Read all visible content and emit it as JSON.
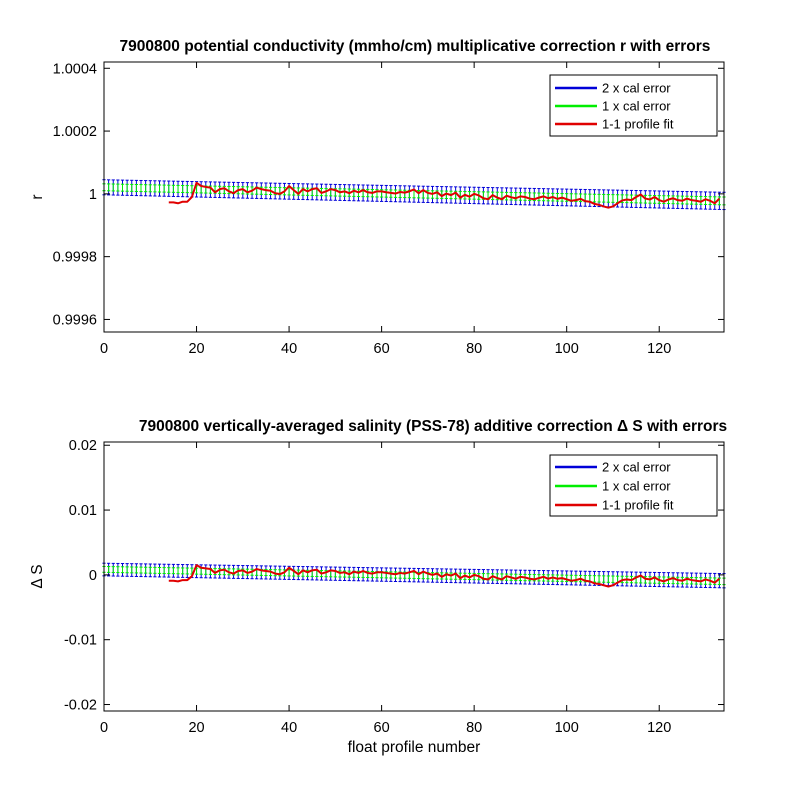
{
  "chart_data": [
    {
      "type": "line",
      "title": "7900800 potential conductivity (mmho/cm) multiplicative correction r with errors",
      "xlabel": "",
      "ylabel": "r",
      "xlim": [
        0,
        134
      ],
      "ylim": [
        0.99956,
        1.00042
      ],
      "xticks": [
        0,
        20,
        40,
        60,
        80,
        100,
        120
      ],
      "xtick_labels": [
        "0",
        "20",
        "40",
        "60",
        "80",
        "100",
        "120"
      ],
      "yticks": [
        0.9996,
        0.9998,
        1,
        1.0002,
        1.0004
      ],
      "ytick_labels": [
        "0.9996",
        "0.9998",
        "1",
        "1.0002",
        "1.0004"
      ],
      "legend_position": "top-right",
      "series": [
        {
          "name": "2 x cal error",
          "color": "#0000d8",
          "style": "errorbar",
          "x": [
            0,
            134
          ],
          "lower": [
            0.999997,
            0.99995
          ],
          "upper": [
            1.000045,
            1.000005
          ]
        },
        {
          "name": "1 x cal error",
          "color": "#00ee00",
          "style": "errorbar",
          "x": [
            0,
            134
          ],
          "lower": [
            1.00001,
            0.999965
          ],
          "upper": [
            1.000032,
            0.99999
          ]
        },
        {
          "name": "1-1 profile fit",
          "color": "#e00000",
          "style": "line",
          "x": [
            14,
            15,
            16,
            17,
            18,
            19,
            20,
            21,
            22,
            23,
            24,
            25,
            26,
            27,
            28,
            29,
            30,
            31,
            32,
            33,
            34,
            35,
            36,
            37,
            38,
            39,
            40,
            41,
            42,
            43,
            44,
            45,
            46,
            47,
            48,
            49,
            50,
            51,
            52,
            53,
            54,
            55,
            56,
            57,
            58,
            59,
            60,
            61,
            62,
            63,
            64,
            65,
            66,
            67,
            68,
            69,
            70,
            71,
            72,
            73,
            74,
            75,
            76,
            77,
            78,
            79,
            80,
            81,
            82,
            83,
            84,
            85,
            86,
            87,
            88,
            89,
            90,
            91,
            92,
            93,
            94,
            95,
            96,
            97,
            98,
            99,
            100,
            101,
            102,
            103,
            104,
            105,
            106,
            107,
            108,
            109,
            110,
            111,
            112,
            113,
            114,
            115,
            116,
            117,
            118,
            119,
            120,
            121,
            122,
            123,
            124,
            125,
            126,
            127,
            128,
            129,
            130,
            131,
            132,
            133
          ],
          "y": [
            0.999973,
            0.999973,
            0.99997,
            0.999975,
            0.999975,
            0.99999,
            1.000035,
            1.000025,
            1.000022,
            1.00002,
            1.000005,
            1.000015,
            1.000018,
            1.000008,
            1.000002,
            1.000012,
            1.000015,
            1.000005,
            1.00001,
            1.00002,
            1.000015,
            1.000012,
            1.00001,
            1.000002,
            1.0,
            1.000008,
            1.000025,
            1.000012,
            1.0,
            1.000015,
            1.000008,
            1.000015,
            1.000018,
            1.000003,
            1.000008,
            1.000015,
            1.000012,
            1.000005,
            1.000008,
            1.000002,
            1.00001,
            1.000005,
            1.000012,
            1.000005,
            1.000003,
            1.000008,
            1.000008,
            1.000005,
            1.000003,
            1.000001,
            1.000006,
            1.000004,
            1.000008,
            1.000014,
            1.000002,
            1.000012,
            1.000003,
            1.0,
            1.000005,
            0.999993,
            1.000001,
            0.999996,
            1.000004,
            0.999988,
            0.999997,
            0.999991,
            1.0,
            0.999995,
            0.999986,
            0.999983,
            0.999996,
            0.999988,
            0.999983,
            0.999994,
            0.999989,
            0.999986,
            0.999992,
            0.99999,
            0.999985,
            0.999983,
            0.999988,
            0.999992,
            0.999986,
            0.99999,
            0.999984,
            0.999988,
            0.999983,
            0.999978,
            0.99998,
            0.999984,
            0.999977,
            0.999975,
            0.999968,
            0.999965,
            0.99996,
            0.999956,
            0.99996,
            0.99997,
            0.999979,
            0.999982,
            0.99998,
            0.99999,
            0.999998,
            0.999985,
            0.999982,
            0.99999,
            0.99998,
            0.999975,
            0.999982,
            0.999986,
            0.99998,
            0.999978,
            0.999985,
            0.99998,
            0.999978,
            0.999975,
            0.999983,
            0.999978,
            0.99997,
            0.999985
          ]
        }
      ]
    },
    {
      "type": "line",
      "title": "7900800 vertically-averaged salinity (PSS-78) additive correction Δ S with errors",
      "xlabel": "float profile number",
      "ylabel": "Δ S",
      "xlim": [
        0,
        134
      ],
      "ylim": [
        -0.021,
        0.0205
      ],
      "xticks": [
        0,
        20,
        40,
        60,
        80,
        100,
        120
      ],
      "xtick_labels": [
        "0",
        "20",
        "40",
        "60",
        "80",
        "100",
        "120"
      ],
      "yticks": [
        -0.02,
        -0.01,
        0,
        0.01,
        0.02
      ],
      "ytick_labels": [
        "-0.02",
        "-0.01",
        "0",
        "0.01",
        "0.02"
      ],
      "legend_position": "top-right",
      "series": [
        {
          "name": "2 x cal error",
          "color": "#0000d8",
          "style": "errorbar",
          "x": [
            0,
            134
          ],
          "lower": [
            -0.00015,
            -0.002
          ],
          "upper": [
            0.0018,
            0.0002
          ]
        },
        {
          "name": "1 x cal error",
          "color": "#00ee00",
          "style": "errorbar",
          "x": [
            0,
            134
          ],
          "lower": [
            0.0004,
            -0.0015
          ],
          "upper": [
            0.0013,
            -0.0005
          ]
        },
        {
          "name": "1-1 profile fit",
          "color": "#e00000",
          "style": "line",
          "x": [
            14,
            15,
            16,
            17,
            18,
            19,
            20,
            21,
            22,
            23,
            24,
            25,
            26,
            27,
            28,
            29,
            30,
            31,
            32,
            33,
            34,
            35,
            36,
            37,
            38,
            39,
            40,
            41,
            42,
            43,
            44,
            45,
            46,
            47,
            48,
            49,
            50,
            51,
            52,
            53,
            54,
            55,
            56,
            57,
            58,
            59,
            60,
            61,
            62,
            63,
            64,
            65,
            66,
            67,
            68,
            69,
            70,
            71,
            72,
            73,
            74,
            75,
            76,
            77,
            78,
            79,
            80,
            81,
            82,
            83,
            84,
            85,
            86,
            87,
            88,
            89,
            90,
            91,
            92,
            93,
            94,
            95,
            96,
            97,
            98,
            99,
            100,
            101,
            102,
            103,
            104,
            105,
            106,
            107,
            108,
            109,
            110,
            111,
            112,
            113,
            114,
            115,
            116,
            117,
            118,
            119,
            120,
            121,
            122,
            123,
            124,
            125,
            126,
            127,
            128,
            129,
            130,
            131,
            132,
            133
          ],
          "y": [
            -0.0009,
            -0.0009,
            -0.001,
            -0.0008,
            -0.0008,
            -0.0002,
            0.0015,
            0.0011,
            0.001,
            0.0009,
            0.0003,
            0.0007,
            0.0008,
            0.0004,
            0.0002,
            0.0006,
            0.0007,
            0.0003,
            0.0005,
            0.0009,
            0.0007,
            0.0006,
            0.0005,
            0.0002,
            0.0001,
            0.0004,
            0.0011,
            0.0006,
            0.0001,
            0.0007,
            0.0004,
            0.0007,
            0.0008,
            0.0002,
            0.0004,
            0.0007,
            0.0006,
            0.0003,
            0.0004,
            0.0001,
            0.0005,
            0.0003,
            0.0006,
            0.0003,
            0.0002,
            0.0004,
            0.0004,
            0.0003,
            0.0002,
            0.0001,
            0.0003,
            0.0002,
            0.0004,
            0.0006,
            0.0001,
            0.0005,
            0.0002,
            0.0,
            0.0002,
            -0.0003,
            0.0001,
            -0.0001,
            0.0002,
            -0.0005,
            -0.0001,
            -0.0004,
            0.0,
            -0.0002,
            -0.0006,
            -0.0007,
            -0.0002,
            -0.0005,
            -0.0007,
            -0.0002,
            -0.0004,
            -0.0006,
            -0.0003,
            -0.0004,
            -0.0006,
            -0.0007,
            -0.0005,
            -0.0003,
            -0.0006,
            -0.0004,
            -0.0006,
            -0.0005,
            -0.0007,
            -0.0009,
            -0.0008,
            -0.0006,
            -0.0009,
            -0.001,
            -0.0013,
            -0.0014,
            -0.0016,
            -0.0018,
            -0.0016,
            -0.0012,
            -0.0008,
            -0.0007,
            -0.0008,
            -0.0004,
            -0.0001,
            -0.0006,
            -0.0007,
            -0.0004,
            -0.0008,
            -0.001,
            -0.0007,
            -0.0005,
            -0.0008,
            -0.0009,
            -0.0006,
            -0.0008,
            -0.0009,
            -0.001,
            -0.0007,
            -0.0009,
            -0.0012,
            -0.0006
          ]
        }
      ]
    }
  ]
}
